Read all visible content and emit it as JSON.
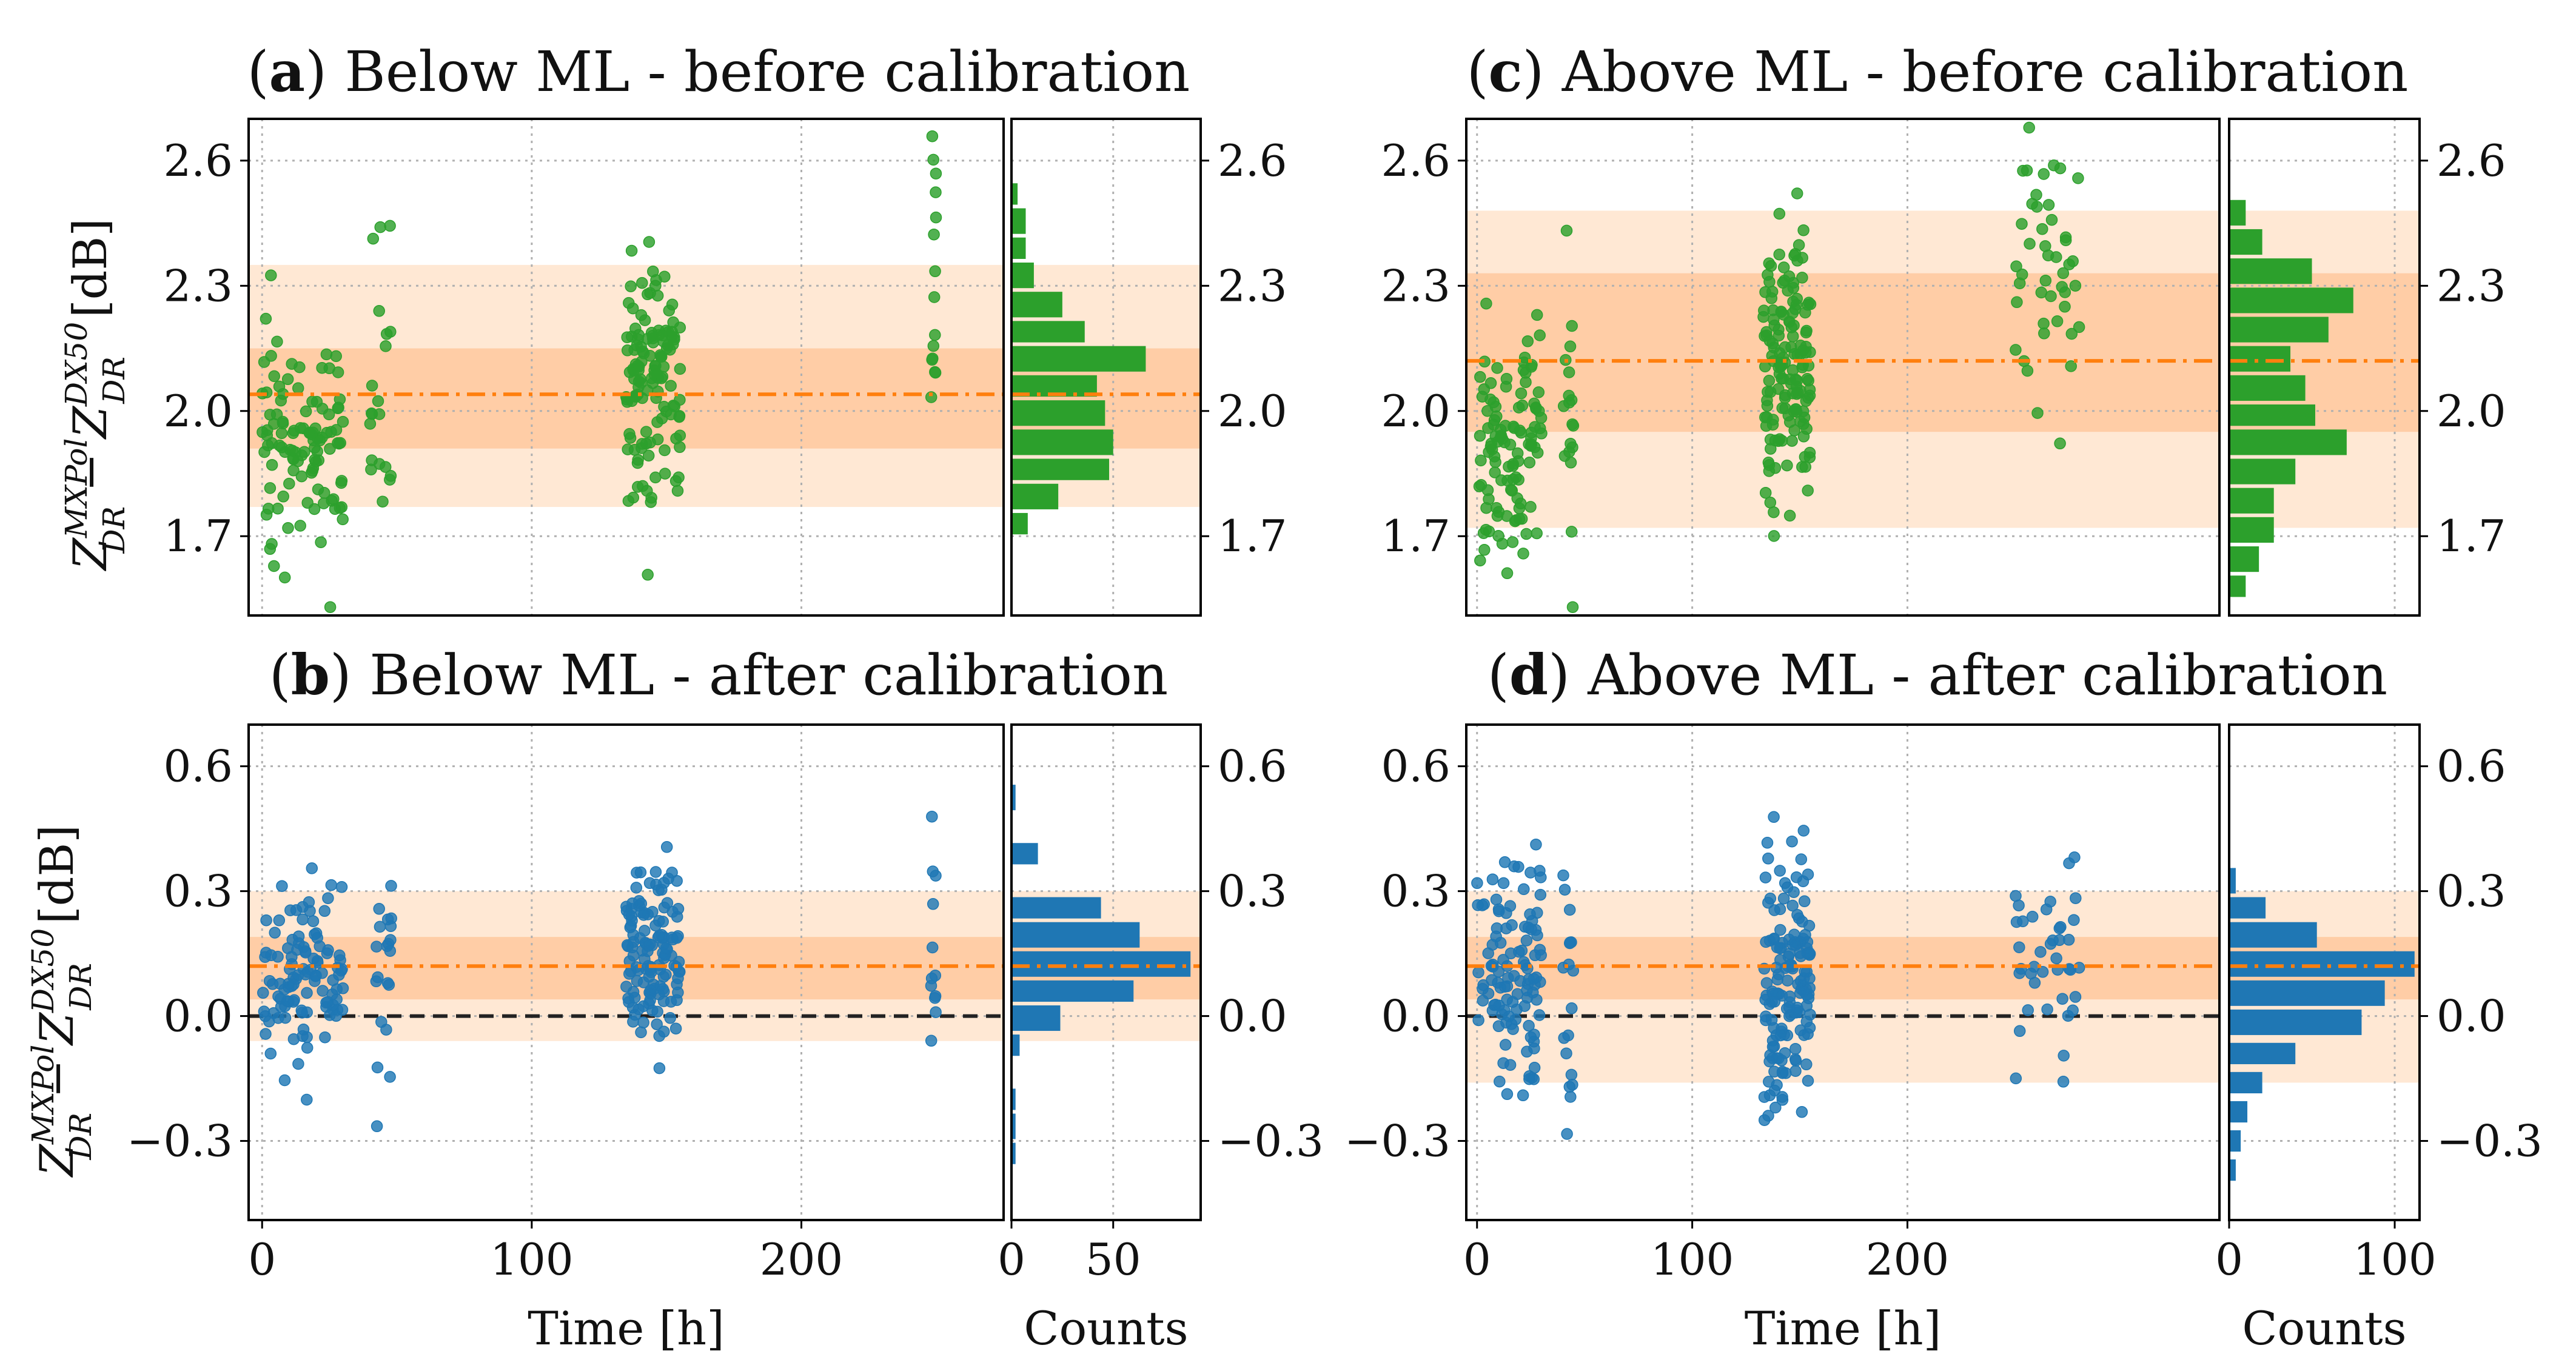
{
  "figure": {
    "ylabel_z": "Z",
    "ylabel_sup": "MXPol",
    "ylabel_sub": "DR",
    "ylabel_minus": " − ",
    "ylabel_z2": "Z",
    "ylabel_sup2": "DX50",
    "ylabel_sub2": "DR",
    "ylabel_unit": " [dB]",
    "xlabel_time": "Time [h]",
    "xlabel_counts": "Counts"
  },
  "chart_data": [
    {
      "id": "a",
      "type": "scatter",
      "panel_letter": "a",
      "title": "Below ML - before calibration",
      "color": "#2ca02c",
      "hist_xlabel": "Counts",
      "x_axis_label": "",
      "ylim": [
        1.51,
        2.7
      ],
      "xlim": [
        -5,
        275
      ],
      "yticks": [
        "1.7",
        "2.0",
        "2.3",
        "2.6"
      ],
      "xticks": [],
      "hist_xlim": [
        0,
        93
      ],
      "hist_xticks": [],
      "mean": 2.04,
      "inner_band": [
        1.91,
        2.15
      ],
      "outer_band": [
        1.77,
        2.35
      ],
      "zero_line": false,
      "groups": [
        {
          "t0": 0,
          "t1": 30,
          "n": 110,
          "mean": 1.93,
          "sd": 0.12
        },
        {
          "t0": 40,
          "t1": 48,
          "n": 20,
          "mean": 2.12,
          "sd": 0.18
        },
        {
          "t0": 135,
          "t1": 155,
          "n": 130,
          "mean": 2.08,
          "sd": 0.14
        },
        {
          "t0": 248,
          "t1": 250,
          "n": 15,
          "mean": 2.3,
          "sd": 0.2
        }
      ],
      "hist": [
        {
          "y0": 1.7,
          "y1": 1.76,
          "count": 8
        },
        {
          "y0": 1.76,
          "y1": 1.83,
          "count": 23
        },
        {
          "y0": 1.83,
          "y1": 1.89,
          "count": 48
        },
        {
          "y0": 1.89,
          "y1": 1.96,
          "count": 50
        },
        {
          "y0": 1.96,
          "y1": 2.03,
          "count": 46
        },
        {
          "y0": 2.03,
          "y1": 2.09,
          "count": 42
        },
        {
          "y0": 2.09,
          "y1": 2.16,
          "count": 66
        },
        {
          "y0": 2.16,
          "y1": 2.22,
          "count": 36
        },
        {
          "y0": 2.22,
          "y1": 2.29,
          "count": 25
        },
        {
          "y0": 2.29,
          "y1": 2.36,
          "count": 11
        },
        {
          "y0": 2.36,
          "y1": 2.42,
          "count": 7
        },
        {
          "y0": 2.42,
          "y1": 2.49,
          "count": 7
        },
        {
          "y0": 2.49,
          "y1": 2.55,
          "count": 3
        }
      ]
    },
    {
      "id": "b",
      "type": "scatter",
      "panel_letter": "b",
      "title": "Below ML - after calibration",
      "color": "#1f77b4",
      "hist_xlabel": "Counts",
      "x_axis_label": "Time [h]",
      "ylim": [
        -0.49,
        0.7
      ],
      "xlim": [
        -5,
        275
      ],
      "yticks": [
        "−0.3",
        "0.0",
        "0.3",
        "0.6"
      ],
      "xticks": [
        "0",
        "100",
        "200"
      ],
      "hist_xlim": [
        0,
        93
      ],
      "hist_xticks": [
        "0",
        "50"
      ],
      "mean": 0.12,
      "inner_band": [
        0.04,
        0.19
      ],
      "outer_band": [
        -0.06,
        0.3
      ],
      "zero_line": true,
      "groups": [
        {
          "t0": 0,
          "t1": 30,
          "n": 110,
          "mean": 0.1,
          "sd": 0.1
        },
        {
          "t0": 40,
          "t1": 48,
          "n": 20,
          "mean": 0.12,
          "sd": 0.14
        },
        {
          "t0": 135,
          "t1": 155,
          "n": 130,
          "mean": 0.14,
          "sd": 0.12
        },
        {
          "t0": 248,
          "t1": 250,
          "n": 12,
          "mean": 0.15,
          "sd": 0.2
        }
      ],
      "hist": [
        {
          "y0": -0.36,
          "y1": -0.3,
          "count": 2
        },
        {
          "y0": -0.3,
          "y1": -0.23,
          "count": 2
        },
        {
          "y0": -0.23,
          "y1": -0.17,
          "count": 2
        },
        {
          "y0": -0.1,
          "y1": -0.04,
          "count": 4
        },
        {
          "y0": -0.04,
          "y1": 0.03,
          "count": 24
        },
        {
          "y0": 0.03,
          "y1": 0.09,
          "count": 60
        },
        {
          "y0": 0.09,
          "y1": 0.16,
          "count": 88
        },
        {
          "y0": 0.16,
          "y1": 0.23,
          "count": 63
        },
        {
          "y0": 0.23,
          "y1": 0.29,
          "count": 44
        },
        {
          "y0": 0.36,
          "y1": 0.42,
          "count": 13
        },
        {
          "y0": 0.49,
          "y1": 0.56,
          "count": 2
        }
      ]
    },
    {
      "id": "c",
      "type": "scatter",
      "panel_letter": "c",
      "title": "Above ML - before calibration",
      "color": "#2ca02c",
      "hist_xlabel": "Counts",
      "x_axis_label": "",
      "ylim": [
        1.51,
        2.7
      ],
      "xlim": [
        -5,
        345
      ],
      "yticks": [
        "1.7",
        "2.0",
        "2.3",
        "2.6"
      ],
      "xticks": [],
      "hist_xlim": [
        0,
        115
      ],
      "hist_xticks": [],
      "mean": 2.12,
      "inner_band": [
        1.95,
        2.33
      ],
      "outer_band": [
        1.72,
        2.48
      ],
      "zero_line": false,
      "groups": [
        {
          "t0": 0,
          "t1": 30,
          "n": 110,
          "mean": 1.92,
          "sd": 0.14
        },
        {
          "t0": 40,
          "t1": 45,
          "n": 18,
          "mean": 2.05,
          "sd": 0.22
        },
        {
          "t0": 133,
          "t1": 155,
          "n": 150,
          "mean": 2.1,
          "sd": 0.16
        },
        {
          "t0": 250,
          "t1": 280,
          "n": 45,
          "mean": 2.36,
          "sd": 0.16
        }
      ],
      "hist": [
        {
          "y0": 1.55,
          "y1": 1.61,
          "count": 10
        },
        {
          "y0": 1.61,
          "y1": 1.68,
          "count": 18
        },
        {
          "y0": 1.68,
          "y1": 1.75,
          "count": 27
        },
        {
          "y0": 1.75,
          "y1": 1.82,
          "count": 27
        },
        {
          "y0": 1.82,
          "y1": 1.89,
          "count": 40
        },
        {
          "y0": 1.89,
          "y1": 1.96,
          "count": 71
        },
        {
          "y0": 1.96,
          "y1": 2.02,
          "count": 52
        },
        {
          "y0": 2.02,
          "y1": 2.09,
          "count": 46
        },
        {
          "y0": 2.09,
          "y1": 2.16,
          "count": 37
        },
        {
          "y0": 2.16,
          "y1": 2.23,
          "count": 60
        },
        {
          "y0": 2.23,
          "y1": 2.3,
          "count": 75
        },
        {
          "y0": 2.3,
          "y1": 2.37,
          "count": 50
        },
        {
          "y0": 2.37,
          "y1": 2.44,
          "count": 20
        },
        {
          "y0": 2.44,
          "y1": 2.51,
          "count": 10
        }
      ]
    },
    {
      "id": "d",
      "type": "scatter",
      "panel_letter": "d",
      "title": "Above ML - after calibration",
      "color": "#1f77b4",
      "hist_xlabel": "Counts",
      "x_axis_label": "Time [h]",
      "ylim": [
        -0.49,
        0.7
      ],
      "xlim": [
        -5,
        345
      ],
      "yticks": [
        "−0.3",
        "0.0",
        "0.3",
        "0.6"
      ],
      "xticks": [
        "0",
        "100",
        "200"
      ],
      "hist_xlim": [
        0,
        115
      ],
      "hist_xticks": [
        "0",
        "100"
      ],
      "mean": 0.12,
      "inner_band": [
        0.04,
        0.19
      ],
      "outer_band": [
        -0.16,
        0.3
      ],
      "zero_line": true,
      "groups": [
        {
          "t0": 0,
          "t1": 30,
          "n": 110,
          "mean": 0.08,
          "sd": 0.14
        },
        {
          "t0": 40,
          "t1": 45,
          "n": 18,
          "mean": -0.05,
          "sd": 0.22
        },
        {
          "t0": 133,
          "t1": 155,
          "n": 150,
          "mean": 0.08,
          "sd": 0.15
        },
        {
          "t0": 250,
          "t1": 280,
          "n": 40,
          "mean": 0.13,
          "sd": 0.12
        }
      ],
      "hist": [
        {
          "y0": -0.4,
          "y1": -0.34,
          "count": 4
        },
        {
          "y0": -0.33,
          "y1": -0.27,
          "count": 7
        },
        {
          "y0": -0.26,
          "y1": -0.2,
          "count": 11
        },
        {
          "y0": -0.19,
          "y1": -0.13,
          "count": 20
        },
        {
          "y0": -0.12,
          "y1": -0.06,
          "count": 40
        },
        {
          "y0": -0.05,
          "y1": 0.02,
          "count": 80
        },
        {
          "y0": 0.02,
          "y1": 0.09,
          "count": 94
        },
        {
          "y0": 0.09,
          "y1": 0.16,
          "count": 112
        },
        {
          "y0": 0.16,
          "y1": 0.23,
          "count": 53
        },
        {
          "y0": 0.23,
          "y1": 0.29,
          "count": 22
        },
        {
          "y0": 0.29,
          "y1": 0.36,
          "count": 4
        }
      ]
    }
  ]
}
